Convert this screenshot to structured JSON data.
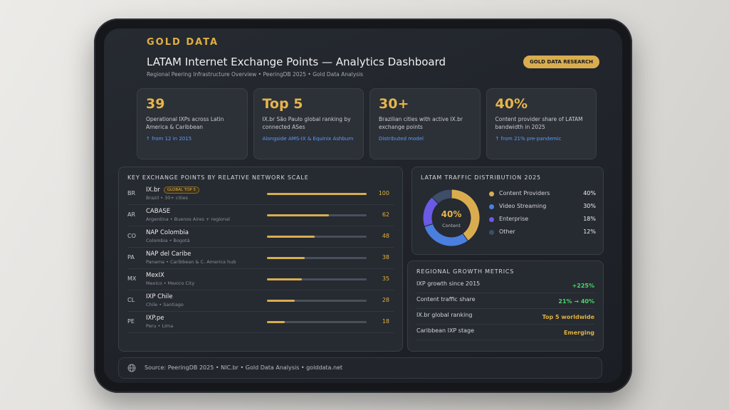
{
  "brand": "GOLD DATA",
  "badge": "GOLD DATA RESEARCH",
  "header": {
    "title": "LATAM Internet Exchange Points — Analytics Dashboard",
    "subtitle": "Regional Peering Infrastructure Overview • PeeringDB 2025 • Gold Data Analysis"
  },
  "kpis": [
    {
      "value": "39",
      "label": "Operational IXPs across Latin America & Caribbean",
      "note": "↑ from 12 in 2015"
    },
    {
      "value": "Top 5",
      "label": "IX.br São Paulo global ranking by connected ASes",
      "note": "Alongside AMS-IX & Equinix Ashburn"
    },
    {
      "value": "30+",
      "label": "Brazilian cities with active IX.br exchange points",
      "note": "Distributed model"
    },
    {
      "value": "40%",
      "label": "Content provider share of LATAM bandwidth in 2025",
      "note": "↑ from 21% pre-pandemic"
    }
  ],
  "exchange_points": {
    "title": "KEY EXCHANGE POINTS BY RELATIVE NETWORK SCALE",
    "color": "#d9ad4f",
    "rows": [
      {
        "code": "BR",
        "name": "IX.br",
        "tag": "GLOBAL TOP 5",
        "location": "Brazil • 30+ cities",
        "value": 100
      },
      {
        "code": "AR",
        "name": "CABASE",
        "location": "Argentina • Buenos Aires + regional",
        "value": 62
      },
      {
        "code": "CO",
        "name": "NAP Colombia",
        "location": "Colombia • Bogotá",
        "value": 48
      },
      {
        "code": "PA",
        "name": "NAP del Caribe",
        "location": "Panama • Caribbean & C. America hub",
        "value": 38
      },
      {
        "code": "MX",
        "name": "MexIX",
        "location": "Mexico • Mexico City",
        "value": 35
      },
      {
        "code": "CL",
        "name": "IXP Chile",
        "location": "Chile • Santiago",
        "value": 28
      },
      {
        "code": "PE",
        "name": "IXP.pe",
        "location": "Peru • Lima",
        "value": 18
      }
    ]
  },
  "traffic": {
    "title": "LATAM TRAFFIC DISTRIBUTION 2025",
    "center_value": "40%",
    "center_label": "Content",
    "segments": [
      {
        "name": "Content Providers",
        "value": 40,
        "value_label": "40%",
        "color": "#d9ad4f"
      },
      {
        "name": "Video Streaming",
        "value": 30,
        "value_label": "30%",
        "color": "#4a7fe0"
      },
      {
        "name": "Enterprise",
        "value": 18,
        "value_label": "18%",
        "color": "#6a5ae6"
      },
      {
        "name": "Other",
        "value": 12,
        "value_label": "12%",
        "color": "#3e4d68"
      }
    ]
  },
  "growth": {
    "title": "REGIONAL GROWTH METRICS",
    "rows": [
      {
        "label": "IXP growth since 2015",
        "value": "+225%",
        "color": "#4cd46a"
      },
      {
        "label": "Content traffic share",
        "value": "21% → 40%",
        "color": "#4cd46a"
      },
      {
        "label": "IX.br global ranking",
        "value": "Top 5 worldwide",
        "color": "#e0b040"
      },
      {
        "label": "Caribbean IXP stage",
        "value": "Emerging",
        "color": "#e0b040"
      }
    ]
  },
  "footer": "Source: PeeringDB 2025 • NIC.br • Gold Data Analysis • golddata.net"
}
